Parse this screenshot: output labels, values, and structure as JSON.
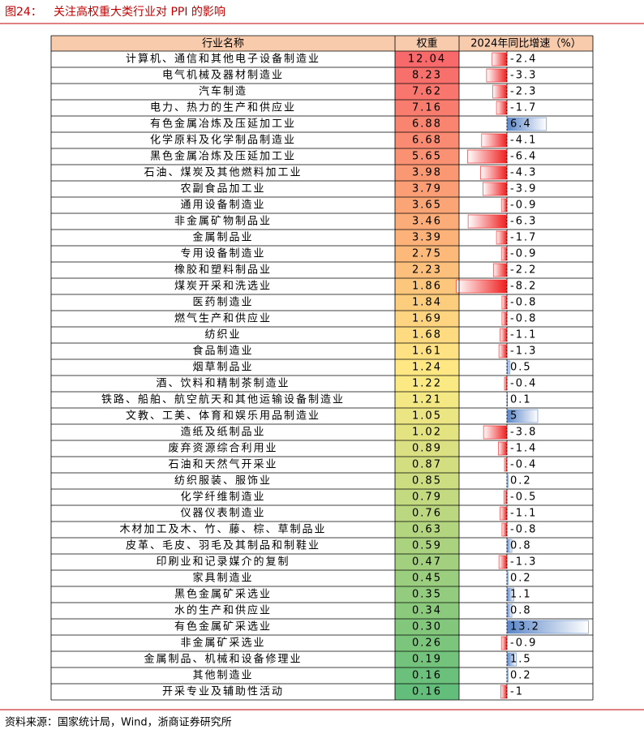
{
  "title": {
    "label": "图24：",
    "text": "关注高权重大类行业对 PPI 的影响"
  },
  "table": {
    "header": [
      "行业名称",
      "权重",
      "2024年同比增速（%）"
    ],
    "rows": [
      [
        "计算机、通信和其他电子设备制造业",
        "12.04",
        "-2.4"
      ],
      [
        "电气机械及器材制造业",
        "8.23",
        "-3.3"
      ],
      [
        "汽车制造",
        "7.62",
        "-2.3"
      ],
      [
        "电力、热力的生产和供应业",
        "7.16",
        "-1.7"
      ],
      [
        "有色金属冶炼及压延加工业",
        "6.88",
        "6.4"
      ],
      [
        "化学原料及化学制品制造业",
        "6.68",
        "-4.1"
      ],
      [
        "黑色金属冶炼及压延加工业",
        "5.65",
        "-6.4"
      ],
      [
        "石油、煤炭及其他燃料加工业",
        "3.98",
        "-4.3"
      ],
      [
        "农副食品加工业",
        "3.79",
        "-3.9"
      ],
      [
        "通用设备制造业",
        "3.65",
        "-0.9"
      ],
      [
        "非金属矿物制品业",
        "3.46",
        "-6.3"
      ],
      [
        "金属制品业",
        "3.39",
        "-1.7"
      ],
      [
        "专用设备制造业",
        "2.75",
        "-0.9"
      ],
      [
        "橡胶和塑料制品业",
        "2.23",
        "-2.2"
      ],
      [
        "煤炭开采和洗选业",
        "1.86",
        "-8.2"
      ],
      [
        "医药制造业",
        "1.84",
        "-0.8"
      ],
      [
        "燃气生产和供应业",
        "1.69",
        "-0.8"
      ],
      [
        "纺织业",
        "1.68",
        "-1.1"
      ],
      [
        "食品制造业",
        "1.61",
        "-1.3"
      ],
      [
        "烟草制品业",
        "1.24",
        "0.5"
      ],
      [
        "酒、饮料和精制茶制造业",
        "1.22",
        "-0.4"
      ],
      [
        "铁路、船舶、航空航天和其他运输设备制造业",
        "1.21",
        "0.1"
      ],
      [
        "文教、工美、体育和娱乐用品制造业",
        "1.05",
        "5"
      ],
      [
        "造纸及纸制品业",
        "1.02",
        "-3.8"
      ],
      [
        "废弃资源综合利用业",
        "0.89",
        "-1.4"
      ],
      [
        "石油和天然气开采业",
        "0.87",
        "-0.4"
      ],
      [
        "纺织服装、服饰业",
        "0.85",
        "0.2"
      ],
      [
        "化学纤维制造业",
        "0.79",
        "-0.5"
      ],
      [
        "仪器仪表制造业",
        "0.76",
        "-1.1"
      ],
      [
        "木材加工及木、竹、藤、棕、草制品业",
        "0.63",
        "-0.8"
      ],
      [
        "皮革、毛皮、羽毛及其制品和制鞋业",
        "0.59",
        "0.8"
      ],
      [
        "印刷业和记录媒介的复制",
        "0.47",
        "-1.3"
      ],
      [
        "家具制造业",
        "0.45",
        "0.2"
      ],
      [
        "黑色金属矿采选业",
        "0.35",
        "1.1"
      ],
      [
        "水的生产和供应业",
        "0.34",
        "0.8"
      ],
      [
        "有色金属矿采选业",
        "0.30",
        "13.2"
      ],
      [
        "非金属矿采选业",
        "0.26",
        "-0.9"
      ],
      [
        "金属制品、机械和设备修理业",
        "0.19",
        "1.5"
      ],
      [
        "其他制造业",
        "0.16",
        "0.2"
      ],
      [
        "开采专业及辅助性活动",
        "0.16",
        "-1"
      ]
    ]
  },
  "source": "资料来源：国家统计局，Wind，浙商证券研究所"
}
